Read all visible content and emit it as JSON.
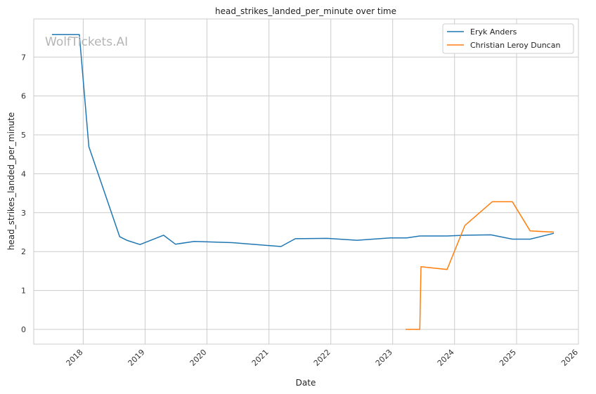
{
  "watermark": "WolfTickets.AI",
  "chart_data": {
    "type": "line",
    "title": "head_strikes_landed_per_minute over time",
    "xlabel": "Date",
    "ylabel": "head_strikes_landed_per_minute",
    "x_type": "date",
    "xlim": [
      "2017-03-15",
      "2026-01-01"
    ],
    "ylim": [
      -0.38,
      7.98
    ],
    "x_ticks": [
      "2018-01-01",
      "2019-01-01",
      "2020-01-01",
      "2021-01-01",
      "2022-01-01",
      "2023-01-01",
      "2024-01-01",
      "2025-01-01",
      "2026-01-01"
    ],
    "x_tick_labels": [
      "2018",
      "2019",
      "2020",
      "2021",
      "2022",
      "2023",
      "2024",
      "2025",
      "2026"
    ],
    "y_ticks": [
      0,
      1,
      2,
      3,
      4,
      5,
      6,
      7
    ],
    "y_tick_labels": [
      "0",
      "1",
      "2",
      "3",
      "4",
      "5",
      "6",
      "7"
    ],
    "grid": true,
    "legend_position": "top-right",
    "series": [
      {
        "name": "Eryk Anders",
        "color": "#1f77b4",
        "x": [
          "2017-07-01",
          "2017-12-09",
          "2018-02-03",
          "2018-08-04",
          "2018-09-15",
          "2018-12-02",
          "2019-04-20",
          "2019-06-29",
          "2019-10-18",
          "2020-05-30",
          "2021-03-13",
          "2021-06-05",
          "2021-12-11",
          "2022-06-04",
          "2022-12-17",
          "2023-03-25",
          "2023-06-10",
          "2023-11-18",
          "2024-03-09",
          "2024-08-03",
          "2024-12-07",
          "2025-03-22",
          "2025-08-09"
        ],
        "y": [
          7.58,
          7.58,
          4.7,
          2.38,
          2.29,
          2.18,
          2.42,
          2.19,
          2.26,
          2.23,
          2.13,
          2.33,
          2.34,
          2.29,
          2.35,
          2.35,
          2.4,
          2.4,
          2.42,
          2.43,
          2.32,
          2.32,
          2.47
        ]
      },
      {
        "name": "Christian Leroy Duncan",
        "color": "#ff7f0e",
        "x": [
          "2023-03-18",
          "2023-06-10",
          "2023-06-17",
          "2023-11-18",
          "2024-03-02",
          "2024-08-10",
          "2024-12-07",
          "2025-03-22",
          "2025-08-09"
        ],
        "y": [
          0.0,
          0.0,
          1.61,
          1.54,
          2.67,
          3.28,
          3.28,
          2.53,
          2.5
        ]
      }
    ]
  }
}
